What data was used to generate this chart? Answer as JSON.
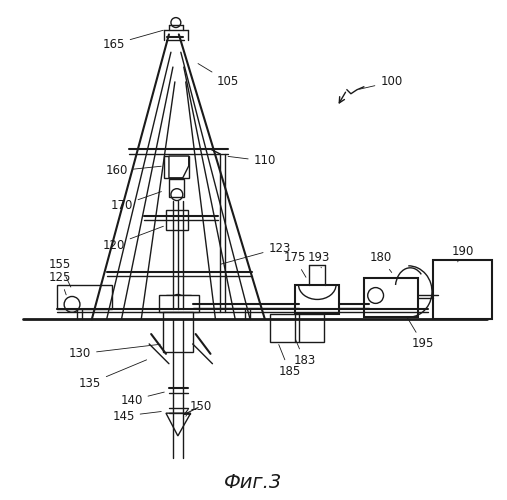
{
  "title": "Фиг.3",
  "background_color": "#ffffff",
  "line_color": "#1a1a1a",
  "label_color": "#1a1a1a",
  "fig_width": 5.07,
  "fig_height": 5.0,
  "dpi": 100
}
